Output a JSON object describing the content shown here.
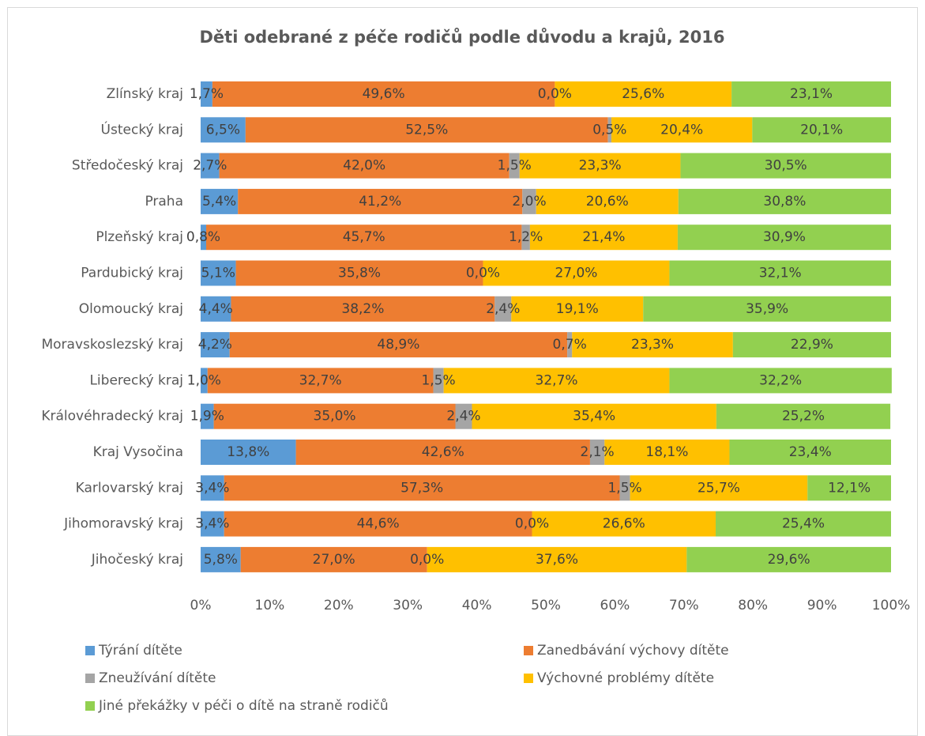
{
  "chart_data": {
    "type": "stacked_barh",
    "title": "Děti odebrané z péče rodičů podle důvodu a krajů, 2016",
    "categories": [
      "Zlínský kraj",
      "Ústecký kraj",
      "Středočeský kraj",
      "Praha",
      "Plzeňský kraj",
      "Pardubický kraj",
      "Olomoucký kraj",
      "Moravskoslezský kraj",
      "Liberecký kraj",
      "Královéhradecký kraj",
      "Kraj Vysočina",
      "Karlovarský kraj",
      "Jihomoravský kraj",
      "Jihočeský kraj"
    ],
    "series": [
      {
        "name": "Týrání dítěte",
        "color": "#5b9bd5",
        "values": [
          1.7,
          6.5,
          2.7,
          5.4,
          0.8,
          5.1,
          4.4,
          4.2,
          1.0,
          1.9,
          13.8,
          3.4,
          3.4,
          5.8
        ],
        "value_labels": [
          "1,7%",
          "6,5%",
          "2,7%",
          "5,4%",
          "0,8%",
          "5,1%",
          "4,4%",
          "4,2%",
          "1,0%",
          "1,9%",
          "13,8%",
          "3,4%",
          "3,4%",
          "5,8%"
        ]
      },
      {
        "name": "Zanedbávání výchovy dítěte",
        "color": "#ed7d31",
        "values": [
          49.6,
          52.5,
          42.0,
          41.2,
          45.7,
          35.8,
          38.2,
          48.9,
          32.7,
          35.0,
          42.6,
          57.3,
          44.6,
          27.0
        ],
        "value_labels": [
          "49,6%",
          "52,5%",
          "42,0%",
          "41,2%",
          "45,7%",
          "35,8%",
          "38,2%",
          "48,9%",
          "32,7%",
          "35,0%",
          "42,6%",
          "57,3%",
          "44,6%",
          "27,0%"
        ]
      },
      {
        "name": "Zneužívání dítěte",
        "color": "#a5a5a5",
        "values": [
          0.0,
          0.5,
          1.5,
          2.0,
          1.2,
          0.0,
          2.4,
          0.7,
          1.5,
          2.4,
          2.1,
          1.5,
          0.0,
          0.0
        ],
        "value_labels": [
          "0,0%",
          "0,5%",
          "1,5%",
          "2,0%",
          "1,2%",
          "0,0%",
          "2,4%",
          "0,7%",
          "1,5%",
          "2,4%",
          "2,1%",
          "1,5%",
          "0,0%",
          "0,0%"
        ]
      },
      {
        "name": "Výchovné problémy dítěte",
        "color": "#ffc000",
        "values": [
          25.6,
          20.4,
          23.3,
          20.6,
          21.4,
          27.0,
          19.1,
          23.3,
          32.7,
          35.4,
          18.1,
          25.7,
          26.6,
          37.6
        ],
        "value_labels": [
          "25,6%",
          "20,4%",
          "23,3%",
          "20,6%",
          "21,4%",
          "27,0%",
          "19,1%",
          "23,3%",
          "32,7%",
          "35,4%",
          "18,1%",
          "25,7%",
          "26,6%",
          "37,6%"
        ]
      },
      {
        "name": "Jiné překážky v péči o dítě na straně rodičů",
        "color": "#92d050",
        "values": [
          23.1,
          20.1,
          30.5,
          30.8,
          30.9,
          32.1,
          35.9,
          22.9,
          32.2,
          25.2,
          23.4,
          12.1,
          25.4,
          29.6
        ],
        "value_labels": [
          "23,1%",
          "20,1%",
          "30,5%",
          "30,8%",
          "30,9%",
          "32,1%",
          "35,9%",
          "22,9%",
          "32,2%",
          "25,2%",
          "23,4%",
          "12,1%",
          "25,4%",
          "29,6%"
        ]
      }
    ],
    "xlim": [
      0,
      100
    ],
    "xticks": [
      {
        "value": 0,
        "label": "0%"
      },
      {
        "value": 10,
        "label": "10%"
      },
      {
        "value": 20,
        "label": "20%"
      },
      {
        "value": 30,
        "label": "30%"
      },
      {
        "value": 40,
        "label": "40%"
      },
      {
        "value": 50,
        "label": "50%"
      },
      {
        "value": 60,
        "label": "60%"
      },
      {
        "value": 70,
        "label": "70%"
      },
      {
        "value": 80,
        "label": "80%"
      },
      {
        "value": 90,
        "label": "90%"
      },
      {
        "value": 100,
        "label": "100%"
      }
    ],
    "grid": false,
    "legend": "bottom"
  }
}
